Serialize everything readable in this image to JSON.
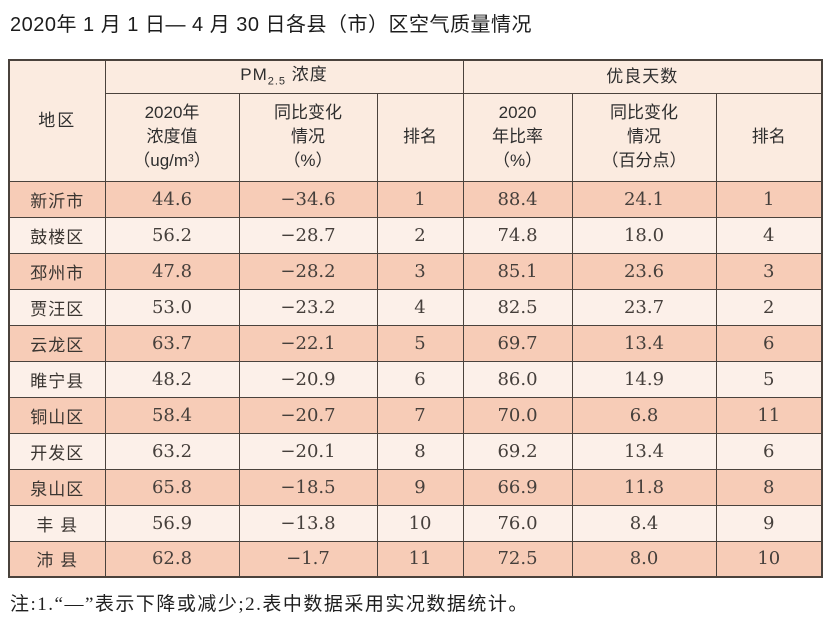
{
  "title": "2020年 1 月 1 日— 4 月 30 日各县（市）区空气质量情况",
  "table": {
    "header": {
      "region": "地区",
      "pm25_group": {
        "prefix": "PM",
        "sub": "2.5",
        "suffix": " 浓度"
      },
      "good_days_group": "优良天数",
      "pm_value": "2020年\n浓度值\n（ug/m³）",
      "pm_change": "同比变化\n情况\n（%）",
      "pm_rank": "排名",
      "good_rate": "2020\n年比率\n（%）",
      "good_change": "同比变化\n情况\n（百分点）",
      "good_rank": "排名"
    },
    "rows": [
      {
        "region": "新沂市",
        "pm_value": "44.6",
        "pm_change": "−34.6",
        "pm_rank": "1",
        "good_rate": "88.4",
        "good_change": "24.1",
        "good_rank": "1"
      },
      {
        "region": "鼓楼区",
        "pm_value": "56.2",
        "pm_change": "−28.7",
        "pm_rank": "2",
        "good_rate": "74.8",
        "good_change": "18.0",
        "good_rank": "4"
      },
      {
        "region": "邳州市",
        "pm_value": "47.8",
        "pm_change": "−28.2",
        "pm_rank": "3",
        "good_rate": "85.1",
        "good_change": "23.6",
        "good_rank": "3"
      },
      {
        "region": "贾汪区",
        "pm_value": "53.0",
        "pm_change": "−23.2",
        "pm_rank": "4",
        "good_rate": "82.5",
        "good_change": "23.7",
        "good_rank": "2"
      },
      {
        "region": "云龙区",
        "pm_value": "63.7",
        "pm_change": "−22.1",
        "pm_rank": "5",
        "good_rate": "69.7",
        "good_change": "13.4",
        "good_rank": "6"
      },
      {
        "region": "睢宁县",
        "pm_value": "48.2",
        "pm_change": "−20.9",
        "pm_rank": "6",
        "good_rate": "86.0",
        "good_change": "14.9",
        "good_rank": "5"
      },
      {
        "region": "铜山区",
        "pm_value": "58.4",
        "pm_change": "−20.7",
        "pm_rank": "7",
        "good_rate": "70.0",
        "good_change": "6.8",
        "good_rank": "11"
      },
      {
        "region": "开发区",
        "pm_value": "63.2",
        "pm_change": "−20.1",
        "pm_rank": "8",
        "good_rate": "69.2",
        "good_change": "13.4",
        "good_rank": "6"
      },
      {
        "region": "泉山区",
        "pm_value": "65.8",
        "pm_change": "−18.5",
        "pm_rank": "9",
        "good_rate": "66.9",
        "good_change": "11.8",
        "good_rank": "8"
      },
      {
        "region": "丰 县",
        "pm_value": "56.9",
        "pm_change": "−13.8",
        "pm_rank": "10",
        "good_rate": "76.0",
        "good_change": "8.4",
        "good_rank": "9"
      },
      {
        "region": "沛 县",
        "pm_value": "62.8",
        "pm_change": "−1.7",
        "pm_rank": "11",
        "good_rate": "72.5",
        "good_change": "8.0",
        "good_rank": "10"
      }
    ]
  },
  "note": "注:1.“—”表示下降或减少;2.表中数据采用实况数据统计。",
  "colors": {
    "border": "#4a423c",
    "header_bg": "#fbebe0",
    "row_odd": "#f7ccb7",
    "row_even": "#fcf0e9"
  }
}
